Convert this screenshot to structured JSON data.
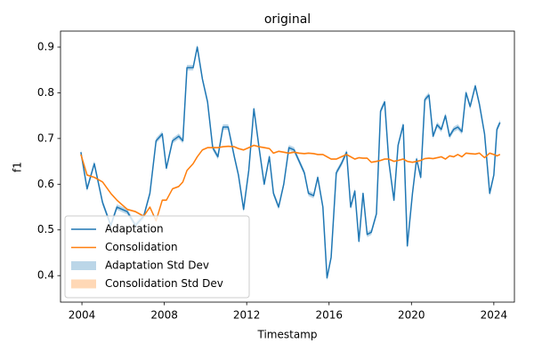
{
  "chart_data": {
    "type": "line",
    "title": "original",
    "xlabel": "Timestamp",
    "ylabel": "f1",
    "x": [
      2003.95,
      2004.25,
      2004.6,
      2005.0,
      2005.4,
      2005.7,
      2006.2,
      2006.6,
      2007.0,
      2007.3,
      2007.6,
      2007.9,
      2008.1,
      2008.4,
      2008.7,
      2008.9,
      2009.1,
      2009.4,
      2009.6,
      2009.85,
      2010.1,
      2010.35,
      2010.6,
      2010.85,
      2011.1,
      2011.4,
      2011.6,
      2011.85,
      2012.1,
      2012.35,
      2012.6,
      2012.85,
      2013.1,
      2013.3,
      2013.55,
      2013.8,
      2014.05,
      2014.3,
      2014.55,
      2014.8,
      2015.0,
      2015.25,
      2015.45,
      2015.7,
      2015.9,
      2016.1,
      2016.35,
      2016.6,
      2016.85,
      2017.05,
      2017.25,
      2017.45,
      2017.65,
      2017.85,
      2018.05,
      2018.3,
      2018.5,
      2018.7,
      2018.9,
      2019.15,
      2019.35,
      2019.6,
      2019.8,
      2020.05,
      2020.25,
      2020.45,
      2020.65,
      2020.85,
      2021.05,
      2021.25,
      2021.45,
      2021.65,
      2021.85,
      2022.05,
      2022.25,
      2022.45,
      2022.65,
      2022.85,
      2023.1,
      2023.3,
      2023.55,
      2023.8,
      2024.0,
      2024.15,
      2024.3
    ],
    "series": [
      {
        "name": "Adaptation",
        "color": "#1f77b4",
        "band": {
          "name": "Adaptation Std Dev",
          "std": 0.006
        },
        "values": [
          0.67,
          0.59,
          0.645,
          0.56,
          0.51,
          0.55,
          0.54,
          0.51,
          0.53,
          0.58,
          0.695,
          0.71,
          0.635,
          0.695,
          0.705,
          0.695,
          0.855,
          0.855,
          0.9,
          0.83,
          0.78,
          0.68,
          0.66,
          0.725,
          0.725,
          0.66,
          0.62,
          0.545,
          0.63,
          0.765,
          0.68,
          0.6,
          0.66,
          0.58,
          0.55,
          0.6,
          0.68,
          0.675,
          0.65,
          0.625,
          0.58,
          0.575,
          0.615,
          0.55,
          0.395,
          0.44,
          0.625,
          0.645,
          0.67,
          0.55,
          0.585,
          0.475,
          0.58,
          0.49,
          0.495,
          0.535,
          0.76,
          0.78,
          0.65,
          0.565,
          0.685,
          0.73,
          0.465,
          0.58,
          0.655,
          0.615,
          0.785,
          0.795,
          0.705,
          0.73,
          0.72,
          0.75,
          0.705,
          0.72,
          0.725,
          0.715,
          0.8,
          0.77,
          0.815,
          0.775,
          0.71,
          0.58,
          0.62,
          0.72,
          0.735
        ]
      },
      {
        "name": "Consolidation",
        "color": "#ff7f0e",
        "band": {
          "name": "Consolidation Std Dev",
          "std": 0.002
        },
        "values": [
          0.665,
          0.62,
          0.615,
          0.605,
          0.58,
          0.565,
          0.545,
          0.54,
          0.53,
          0.55,
          0.52,
          0.565,
          0.565,
          0.59,
          0.595,
          0.605,
          0.63,
          0.645,
          0.66,
          0.675,
          0.68,
          0.68,
          0.68,
          0.682,
          0.683,
          0.682,
          0.678,
          0.675,
          0.68,
          0.685,
          0.682,
          0.68,
          0.678,
          0.668,
          0.672,
          0.67,
          0.668,
          0.67,
          0.668,
          0.667,
          0.668,
          0.667,
          0.665,
          0.665,
          0.66,
          0.655,
          0.655,
          0.66,
          0.665,
          0.66,
          0.655,
          0.658,
          0.657,
          0.657,
          0.648,
          0.65,
          0.652,
          0.655,
          0.655,
          0.65,
          0.652,
          0.655,
          0.65,
          0.648,
          0.65,
          0.652,
          0.656,
          0.657,
          0.656,
          0.658,
          0.66,
          0.655,
          0.662,
          0.66,
          0.665,
          0.66,
          0.668,
          0.667,
          0.666,
          0.668,
          0.658,
          0.668,
          0.665,
          0.662,
          0.665
        ]
      }
    ],
    "xlim": [
      2002.96,
      2025.0
    ],
    "xticks": [
      2004,
      2008,
      2012,
      2016,
      2020,
      2024
    ],
    "ylim": [
      0.342,
      0.935
    ],
    "yticks": [
      0.4,
      0.5,
      0.6,
      0.7,
      0.8,
      0.9
    ],
    "legend": "lower left",
    "grid": false
  }
}
